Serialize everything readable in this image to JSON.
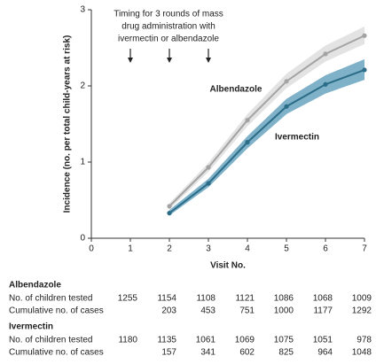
{
  "chart_data": {
    "type": "line",
    "y_label": "Incidence (no. per total child-years at risk)",
    "x_label": "Visit No.",
    "annotation": [
      "Timing for 3 rounds of mass",
      "drug administration with",
      "ivermectin or albendazole"
    ],
    "arrows_x": [
      1,
      2,
      3
    ],
    "xlim": [
      0,
      7
    ],
    "xticks": [
      0,
      1,
      2,
      3,
      4,
      5,
      6,
      7
    ],
    "ylim": [
      0,
      3
    ],
    "yticks": [
      0,
      1,
      2,
      3
    ],
    "series": [
      {
        "name": "Albendazole",
        "color": "#a3a3a3",
        "band_color": "#e3e3e3",
        "x": [
          2,
          3,
          4,
          5,
          6,
          7
        ],
        "values": [
          0.42,
          0.93,
          1.55,
          2.06,
          2.42,
          2.66
        ],
        "lower": [
          0.38,
          0.87,
          1.47,
          1.97,
          2.32,
          2.55
        ],
        "upper": [
          0.46,
          0.99,
          1.63,
          2.16,
          2.53,
          2.78
        ]
      },
      {
        "name": "Ivermectin",
        "color": "#2b6c87",
        "band_color": "#7fb1c9",
        "x": [
          2,
          3,
          4,
          5,
          6,
          7
        ],
        "values": [
          0.33,
          0.72,
          1.26,
          1.73,
          2.02,
          2.21
        ],
        "lower": [
          0.3,
          0.67,
          1.18,
          1.63,
          1.9,
          2.08
        ],
        "upper": [
          0.37,
          0.78,
          1.34,
          1.83,
          2.14,
          2.35
        ]
      }
    ]
  },
  "table": {
    "groups": [
      {
        "name": "Albendazole",
        "rows": [
          {
            "label": "No. of children tested",
            "values": [
              1255,
              1154,
              1108,
              1121,
              1086,
              1068,
              1009
            ]
          },
          {
            "label": "Cumulative no. of cases",
            "values": [
              null,
              203,
              453,
              751,
              1000,
              1177,
              1292
            ]
          }
        ]
      },
      {
        "name": "Ivermectin",
        "rows": [
          {
            "label": "No. of children tested",
            "values": [
              1180,
              1135,
              1061,
              1069,
              1075,
              1051,
              978
            ]
          },
          {
            "label": "Cumulative no. of cases",
            "values": [
              null,
              157,
              341,
              602,
              825,
              964,
              1048
            ]
          }
        ]
      }
    ]
  }
}
